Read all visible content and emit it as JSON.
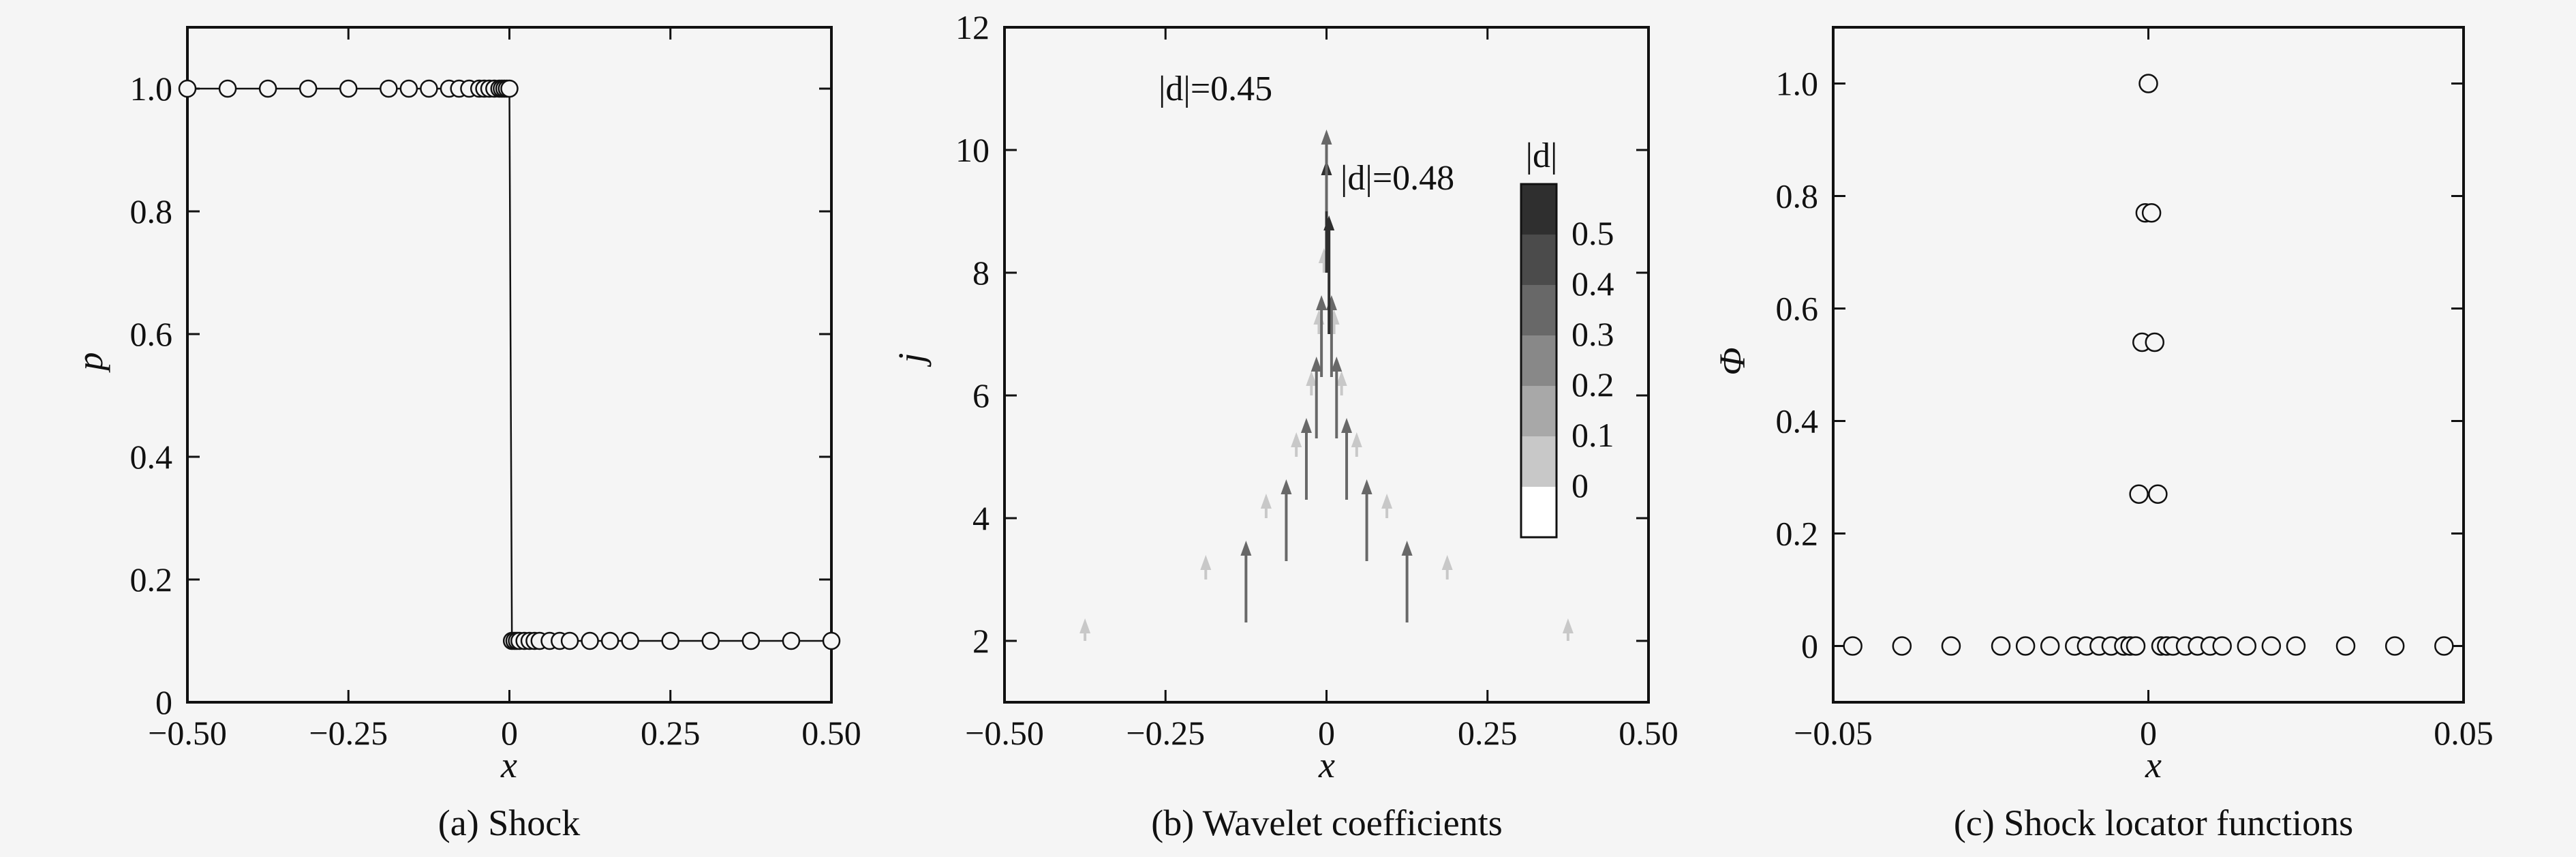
{
  "chart_data": [
    {
      "type": "line",
      "caption": "(a) Shock",
      "xlabel": "x",
      "ylabel": "p",
      "xlim": [
        -0.5,
        0.5
      ],
      "ylim": [
        0,
        1.1
      ],
      "xticks": [
        -0.5,
        -0.25,
        0,
        0.25,
        0.5
      ],
      "xtick_labels": [
        "−0.50",
        "−0.25",
        "0",
        "0.25",
        "0.50"
      ],
      "yticks": [
        0,
        0.2,
        0.4,
        0.6,
        0.8,
        1.0
      ],
      "ytick_labels": [
        "0",
        "0.2",
        "0.4",
        "0.6",
        "0.8",
        "1.0"
      ],
      "series": [
        {
          "marker": "open-circle",
          "x": [
            -0.5,
            -0.4375,
            -0.375,
            -0.3125,
            -0.25,
            -0.1875,
            -0.15625,
            -0.125,
            -0.09375,
            -0.078125,
            -0.0625,
            -0.046875,
            -0.0390625,
            -0.03125,
            -0.0234375,
            -0.015625,
            -0.01171875,
            -0.0078125,
            -0.00390625,
            0,
            0.00390625,
            0.0078125,
            0.01171875,
            0.015625,
            0.0234375,
            0.03125,
            0.0390625,
            0.046875,
            0.0625,
            0.078125,
            0.09375,
            0.125,
            0.15625,
            0.1875,
            0.25,
            0.3125,
            0.375,
            0.4375,
            0.5
          ],
          "y": [
            1,
            1,
            1,
            1,
            1,
            1,
            1,
            1,
            1,
            1,
            1,
            1,
            1,
            1,
            1,
            1,
            1,
            1,
            1,
            1,
            0.1,
            0.1,
            0.1,
            0.1,
            0.1,
            0.1,
            0.1,
            0.1,
            0.1,
            0.1,
            0.1,
            0.1,
            0.1,
            0.1,
            0.1,
            0.1,
            0.1,
            0.1,
            0.1
          ]
        }
      ]
    },
    {
      "type": "scatter",
      "caption": "(b) Wavelet coefficients",
      "xlabel": "x",
      "ylabel": "j",
      "xlim": [
        -0.5,
        0.5
      ],
      "ylim": [
        1,
        12
      ],
      "xticks": [
        -0.5,
        -0.25,
        0,
        0.25,
        0.5
      ],
      "xtick_labels": [
        "−0.50",
        "−0.25",
        "0",
        "0.25",
        "0.50"
      ],
      "yticks": [
        2,
        4,
        6,
        8,
        10,
        12
      ],
      "ytick_labels": [
        "2",
        "4",
        "6",
        "8",
        "10",
        "12"
      ],
      "annotations": [
        "|d|=0.45",
        "|d|=0.48"
      ],
      "colorbar": {
        "title": "|d|",
        "ticks": [
          "0.5",
          "0.4",
          "0.3",
          "0.2",
          "0.1",
          "0"
        ],
        "colors": [
          "#2f2f2f",
          "#4b4b4b",
          "#686868",
          "#888888",
          "#a8a8a8",
          "#c8c8c8",
          "#ffffff"
        ]
      },
      "arrows": [
        {
          "x": -0.375,
          "j": 2,
          "d": 0.01
        },
        {
          "x": 0.375,
          "j": 2,
          "d": 0.01
        },
        {
          "x": -0.1875,
          "j": 3,
          "d": 0.02
        },
        {
          "x": 0.1875,
          "j": 3,
          "d": 0.02
        },
        {
          "x": -0.125,
          "j": 2.3,
          "d": 0.3
        },
        {
          "x": 0.125,
          "j": 2.3,
          "d": 0.3
        },
        {
          "x": -0.09375,
          "j": 4,
          "d": 0.02
        },
        {
          "x": 0.09375,
          "j": 4,
          "d": 0.02
        },
        {
          "x": -0.0625,
          "j": 3.3,
          "d": 0.3
        },
        {
          "x": 0.0625,
          "j": 3.3,
          "d": 0.3
        },
        {
          "x": -0.046875,
          "j": 5,
          "d": 0.02
        },
        {
          "x": 0.046875,
          "j": 5,
          "d": 0.02
        },
        {
          "x": -0.03125,
          "j": 4.3,
          "d": 0.3
        },
        {
          "x": 0.03125,
          "j": 4.3,
          "d": 0.3
        },
        {
          "x": -0.0234375,
          "j": 6,
          "d": 0.02
        },
        {
          "x": 0.0234375,
          "j": 6,
          "d": 0.02
        },
        {
          "x": -0.015625,
          "j": 5.3,
          "d": 0.3
        },
        {
          "x": 0.015625,
          "j": 5.3,
          "d": 0.3
        },
        {
          "x": -0.01171875,
          "j": 7,
          "d": 0.02
        },
        {
          "x": 0.01171875,
          "j": 7,
          "d": 0.02
        },
        {
          "x": -0.0078125,
          "j": 6.3,
          "d": 0.3
        },
        {
          "x": 0.0078125,
          "j": 6.3,
          "d": 0.3
        },
        {
          "x": -0.00390625,
          "j": 8,
          "d": 0.02
        },
        {
          "x": 0.00390625,
          "j": 7,
          "d": 0.48
        },
        {
          "x": 0,
          "j": 8,
          "d": 0.45
        },
        {
          "x": 0,
          "j": 9,
          "d": 0.3
        }
      ]
    },
    {
      "type": "scatter",
      "caption": "(c) Shock locator functions",
      "xlabel": "x",
      "ylabel": "Φ",
      "xlim": [
        -0.05,
        0.05
      ],
      "ylim": [
        -0.1,
        1.1
      ],
      "xticks": [
        -0.05,
        0,
        0.05
      ],
      "xtick_labels": [
        "−0.05",
        "0",
        "0.05"
      ],
      "yticks": [
        0,
        0.2,
        0.4,
        0.6,
        0.8,
        1.0
      ],
      "ytick_labels": [
        "0",
        "0.2",
        "0.4",
        "0.6",
        "0.8",
        "1.0"
      ],
      "series": [
        {
          "marker": "open-circle",
          "x": [
            -0.0469,
            -0.0391,
            -0.0313,
            -0.0234,
            -0.0195,
            -0.0156,
            -0.0117,
            -0.0098,
            -0.0078,
            -0.0059,
            -0.0039,
            -0.0029,
            -0.002,
            0.002,
            0.0029,
            0.0039,
            0.0059,
            0.0078,
            0.0098,
            0.0117,
            0.0156,
            0.0195,
            0.0234,
            0.0313,
            0.0391,
            0.0469,
            -0.0015,
            0.0015,
            -0.001,
            0.001,
            -0.0005,
            0.0005,
            0
          ],
          "y": [
            0,
            0,
            0,
            0,
            0,
            0,
            0,
            0,
            0,
            0,
            0,
            0,
            0,
            0,
            0,
            0,
            0,
            0,
            0,
            0,
            0,
            0,
            0,
            0,
            0,
            0,
            0.27,
            0.27,
            0.54,
            0.54,
            0.77,
            0.77,
            1.0
          ]
        }
      ]
    }
  ]
}
